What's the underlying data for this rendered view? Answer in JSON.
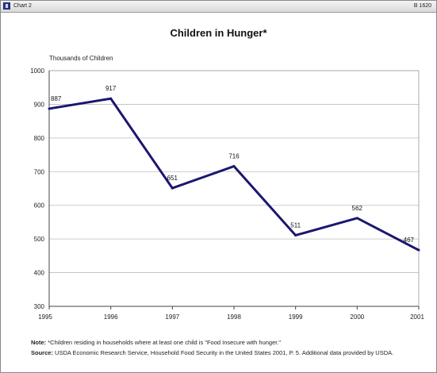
{
  "window": {
    "title_left": "Chart 2",
    "title_right": "B 1620",
    "icon": "app-icon"
  },
  "chart_data": {
    "type": "line",
    "title": "Children in Hunger*",
    "ylabel": "Thousands of Children",
    "xlabel": "",
    "x": [
      "1995",
      "1996",
      "1997",
      "1998",
      "1999",
      "2000",
      "2001"
    ],
    "series": [
      {
        "values": [
          887,
          917,
          651,
          716,
          511,
          562,
          467
        ],
        "color": "#1c1670"
      }
    ],
    "data_labels": [
      "887",
      "917",
      "651",
      "716",
      "511",
      "562",
      "467"
    ],
    "ylim": [
      300,
      1000
    ],
    "yticks": [
      300,
      400,
      500,
      600,
      700,
      800,
      900,
      1000
    ],
    "grid": true
  },
  "notes": {
    "note_label": "Note:",
    "note_text": " *Children  residing in households where at least one child is \"Food Insecure with hunger.\"",
    "source_label": "Source:",
    "source_text": " USDA Economic Research Service, Household Food Security in the United States 2001, P. 5. Additional data provided by USDA."
  }
}
